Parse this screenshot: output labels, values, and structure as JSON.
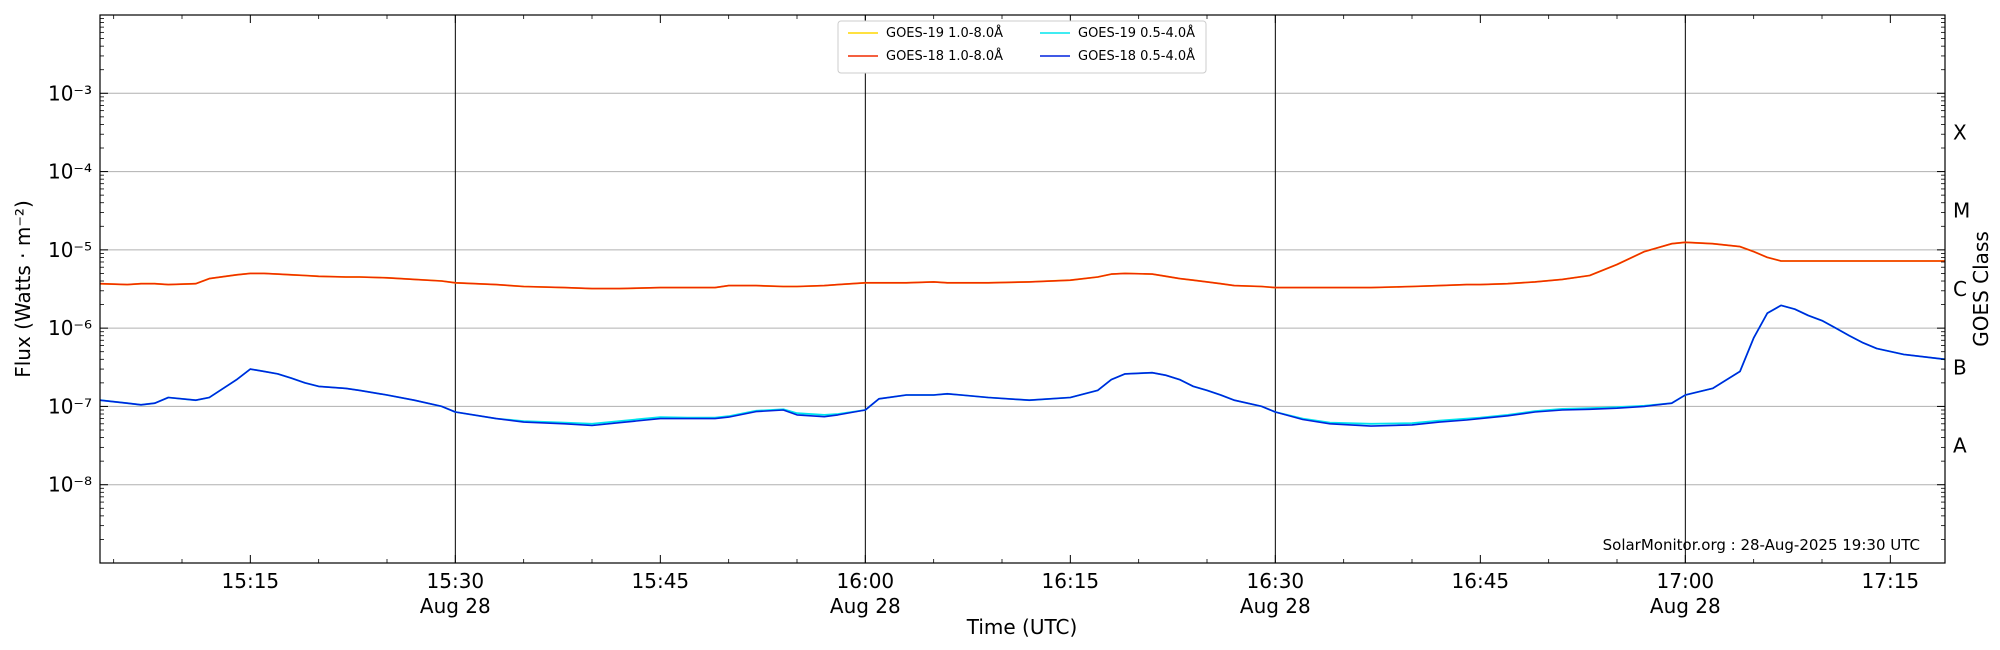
{
  "chart_data": {
    "type": "line",
    "title": "",
    "xlabel": "Time (UTC)",
    "ylabel": "Flux (Watts · m⁻²)",
    "y2label": "GOES Class",
    "yscale": "log",
    "ylim": [
      1e-09,
      0.01
    ],
    "xlim": [
      "15:04",
      "17:19"
    ],
    "grid": "horizontal",
    "legend_position": "top-center",
    "annotation": "SolarMonitor.org : 28-Aug-2025 19:30 UTC",
    "x_ticks": [
      "15:15",
      "15:30",
      "15:45",
      "16:00",
      "16:15",
      "16:30",
      "16:45",
      "17:00",
      "17:15"
    ],
    "x_tick_dates": {
      "15:30": "Aug 28",
      "16:00": "Aug 28",
      "16:30": "Aug 28",
      "17:00": "Aug 28"
    },
    "y_ticks": [
      {
        "value": 1e-08,
        "label": "10⁻⁸"
      },
      {
        "value": 1e-07,
        "label": "10⁻⁷"
      },
      {
        "value": 1e-06,
        "label": "10⁻⁶"
      },
      {
        "value": 1e-05,
        "label": "10⁻⁵"
      },
      {
        "value": 0.0001,
        "label": "10⁻⁴"
      },
      {
        "value": 0.001,
        "label": "10⁻³"
      }
    ],
    "goes_classes": [
      {
        "label": "A",
        "value": 1e-08
      },
      {
        "label": "B",
        "value": 1e-07
      },
      {
        "label": "C",
        "value": 1e-06
      },
      {
        "label": "M",
        "value": 1e-05
      },
      {
        "label": "X",
        "value": 0.0001
      }
    ],
    "legend_order": [
      "GOES-19 1.0-8.0Å",
      "GOES-18 1.0-8.0Å",
      "GOES-19 0.5-4.0Å",
      "GOES-18 0.5-4.0Å"
    ],
    "x": [
      "15:04",
      "15:06",
      "15:07",
      "15:08",
      "15:09",
      "15:11",
      "15:12",
      "15:14",
      "15:15",
      "15:16",
      "15:17",
      "15:18",
      "15:19",
      "15:20",
      "15:22",
      "15:23",
      "15:25",
      "15:27",
      "15:29",
      "15:30",
      "15:33",
      "15:35",
      "15:38",
      "15:40",
      "15:42",
      "15:45",
      "15:47",
      "15:49",
      "15:50",
      "15:52",
      "15:54",
      "15:55",
      "15:57",
      "15:58",
      "16:00",
      "16:01",
      "16:03",
      "16:05",
      "16:06",
      "16:07",
      "16:09",
      "16:12",
      "16:15",
      "16:17",
      "16:18",
      "16:19",
      "16:21",
      "16:22",
      "16:23",
      "16:24",
      "16:25",
      "16:26",
      "16:27",
      "16:29",
      "16:30",
      "16:32",
      "16:34",
      "16:37",
      "16:40",
      "16:42",
      "16:44",
      "16:45",
      "16:47",
      "16:49",
      "16:51",
      "16:53",
      "16:55",
      "16:57",
      "16:59",
      "17:00",
      "17:02",
      "17:04",
      "17:05",
      "17:06",
      "17:07",
      "17:08",
      "17:09",
      "17:10",
      "17:11",
      "17:12",
      "17:13",
      "17:14",
      "17:16",
      "17:19"
    ],
    "series": [
      {
        "name": "GOES-19 1.0-8.0Å",
        "color": "#ffd700",
        "values": [
          3.7e-06,
          3.6e-06,
          3.7e-06,
          3.7e-06,
          3.6e-06,
          3.7e-06,
          4.3e-06,
          4.8e-06,
          5e-06,
          5e-06,
          4.9e-06,
          4.8e-06,
          4.7e-06,
          4.6e-06,
          4.5e-06,
          4.5e-06,
          4.4e-06,
          4.2e-06,
          4e-06,
          3.8e-06,
          3.6e-06,
          3.4e-06,
          3.3e-06,
          3.2e-06,
          3.2e-06,
          3.3e-06,
          3.3e-06,
          3.3e-06,
          3.5e-06,
          3.5e-06,
          3.4e-06,
          3.4e-06,
          3.5e-06,
          3.6e-06,
          3.8e-06,
          3.8e-06,
          3.8e-06,
          3.9e-06,
          3.8e-06,
          3.8e-06,
          3.8e-06,
          3.9e-06,
          4.1e-06,
          4.5e-06,
          4.9e-06,
          5e-06,
          4.9e-06,
          4.6e-06,
          4.3e-06,
          4.1e-06,
          3.9e-06,
          3.7e-06,
          3.5e-06,
          3.4e-06,
          3.3e-06,
          3.3e-06,
          3.3e-06,
          3.3e-06,
          3.4e-06,
          3.5e-06,
          3.6e-06,
          3.6e-06,
          3.7e-06,
          3.9e-06,
          4.2e-06,
          4.7e-06,
          6.5e-06,
          9.5e-06,
          1.2e-05,
          1.25e-05,
          1.2e-05,
          1.1e-05,
          9.5e-06,
          8e-06,
          7.2e-06,
          7.2e-06,
          7.2e-06,
          7.2e-06,
          7.2e-06,
          7.2e-06,
          7.2e-06,
          7.2e-06,
          7.2e-06,
          7.2e-06
        ]
      },
      {
        "name": "GOES-18 1.0-8.0Å",
        "color": "#f02c00",
        "values": [
          3.7e-06,
          3.6e-06,
          3.7e-06,
          3.7e-06,
          3.6e-06,
          3.7e-06,
          4.3e-06,
          4.8e-06,
          5e-06,
          5e-06,
          4.9e-06,
          4.8e-06,
          4.7e-06,
          4.6e-06,
          4.5e-06,
          4.5e-06,
          4.4e-06,
          4.2e-06,
          4e-06,
          3.8e-06,
          3.6e-06,
          3.4e-06,
          3.3e-06,
          3.2e-06,
          3.2e-06,
          3.3e-06,
          3.3e-06,
          3.3e-06,
          3.5e-06,
          3.5e-06,
          3.4e-06,
          3.4e-06,
          3.5e-06,
          3.6e-06,
          3.8e-06,
          3.8e-06,
          3.8e-06,
          3.9e-06,
          3.8e-06,
          3.8e-06,
          3.8e-06,
          3.9e-06,
          4.1e-06,
          4.5e-06,
          4.9e-06,
          5e-06,
          4.9e-06,
          4.6e-06,
          4.3e-06,
          4.1e-06,
          3.9e-06,
          3.7e-06,
          3.5e-06,
          3.4e-06,
          3.3e-06,
          3.3e-06,
          3.3e-06,
          3.3e-06,
          3.4e-06,
          3.5e-06,
          3.6e-06,
          3.6e-06,
          3.7e-06,
          3.9e-06,
          4.2e-06,
          4.7e-06,
          6.5e-06,
          9.5e-06,
          1.2e-05,
          1.25e-05,
          1.2e-05,
          1.1e-05,
          9.5e-06,
          8e-06,
          7.2e-06,
          7.2e-06,
          7.2e-06,
          7.2e-06,
          7.2e-06,
          7.2e-06,
          7.2e-06,
          7.2e-06,
          7.2e-06,
          7.2e-06
        ]
      },
      {
        "name": "GOES-19 0.5-4.0Å",
        "color": "#00e5ee",
        "values": [
          1.2e-07,
          1.1e-07,
          1.05e-07,
          1.1e-07,
          1.3e-07,
          1.2e-07,
          1.3e-07,
          2.2e-07,
          3e-07,
          2.8e-07,
          2.6e-07,
          2.3e-07,
          2e-07,
          1.8e-07,
          1.7e-07,
          1.6e-07,
          1.4e-07,
          1.2e-07,
          1e-07,
          8.5e-08,
          7e-08,
          6.5e-08,
          6.2e-08,
          6e-08,
          6.5e-08,
          7.3e-08,
          7.2e-08,
          7.2e-08,
          7.5e-08,
          8.8e-08,
          9.2e-08,
          8.2e-08,
          7.8e-08,
          8e-08,
          9e-08,
          1.25e-07,
          1.4e-07,
          1.4e-07,
          1.45e-07,
          1.4e-07,
          1.3e-07,
          1.2e-07,
          1.3e-07,
          1.6e-07,
          2.2e-07,
          2.6e-07,
          2.7e-07,
          2.5e-07,
          2.2e-07,
          1.8e-07,
          1.6e-07,
          1.4e-07,
          1.2e-07,
          1e-07,
          8.5e-08,
          7e-08,
          6.2e-08,
          6e-08,
          6.1e-08,
          6.6e-08,
          7e-08,
          7.2e-08,
          7.8e-08,
          8.7e-08,
          9.3e-08,
          9.5e-08,
          9.8e-08,
          1.02e-07,
          1.1e-07,
          1.4e-07,
          1.7e-07,
          2.8e-07,
          7.5e-07,
          1.55e-06,
          1.95e-06,
          1.75e-06,
          1.45e-06,
          1.25e-06,
          1e-06,
          8e-07,
          6.5e-07,
          5.5e-07,
          4.6e-07,
          4e-07
        ]
      },
      {
        "name": "GOES-18 0.5-4.0Å",
        "color": "#0022dd",
        "values": [
          1.2e-07,
          1.1e-07,
          1.05e-07,
          1.1e-07,
          1.3e-07,
          1.2e-07,
          1.3e-07,
          2.2e-07,
          3e-07,
          2.8e-07,
          2.6e-07,
          2.3e-07,
          2e-07,
          1.8e-07,
          1.7e-07,
          1.6e-07,
          1.4e-07,
          1.2e-07,
          1e-07,
          8.5e-08,
          7e-08,
          6.3e-08,
          6e-08,
          5.7e-08,
          6.2e-08,
          7e-08,
          7e-08,
          7e-08,
          7.3e-08,
          8.6e-08,
          9e-08,
          7.8e-08,
          7.4e-08,
          7.8e-08,
          9e-08,
          1.25e-07,
          1.4e-07,
          1.4e-07,
          1.45e-07,
          1.4e-07,
          1.3e-07,
          1.2e-07,
          1.3e-07,
          1.6e-07,
          2.2e-07,
          2.6e-07,
          2.7e-07,
          2.5e-07,
          2.2e-07,
          1.8e-07,
          1.6e-07,
          1.4e-07,
          1.2e-07,
          1e-07,
          8.5e-08,
          6.8e-08,
          6e-08,
          5.6e-08,
          5.8e-08,
          6.3e-08,
          6.7e-08,
          7e-08,
          7.6e-08,
          8.5e-08,
          9e-08,
          9.2e-08,
          9.5e-08,
          1e-07,
          1.1e-07,
          1.4e-07,
          1.7e-07,
          2.8e-07,
          7.5e-07,
          1.55e-06,
          1.95e-06,
          1.75e-06,
          1.45e-06,
          1.25e-06,
          1e-06,
          8e-07,
          6.5e-07,
          5.5e-07,
          4.6e-07,
          4e-07
        ]
      }
    ]
  }
}
